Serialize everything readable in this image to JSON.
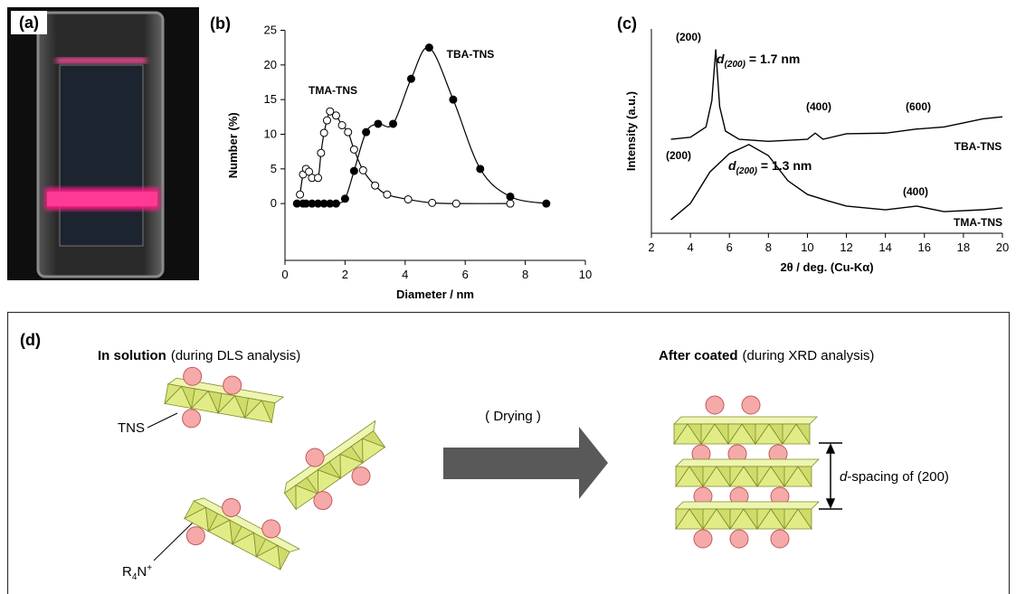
{
  "photo": {
    "label": "(a)"
  },
  "chart_data": [
    {
      "type": "line",
      "panel_label": "(b)",
      "xlabel": "Diameter / nm",
      "ylabel": "Number (%)",
      "xlim": [
        0,
        10
      ],
      "ylim": [
        -8.2,
        25
      ],
      "xticks": [
        0,
        2,
        4,
        6,
        8,
        10
      ],
      "yticks": [
        0,
        5,
        10,
        15,
        20,
        25
      ],
      "series": [
        {
          "name": "TMA-TNS",
          "marker": "open",
          "color": "#000000",
          "x": [
            0.5,
            0.6,
            0.7,
            0.8,
            0.9,
            1.1,
            1.2,
            1.3,
            1.4,
            1.5,
            1.7,
            1.9,
            2.1,
            2.3,
            2.6,
            3.0,
            3.4,
            4.1,
            4.9,
            5.7,
            7.5
          ],
          "values": [
            1.3,
            4.2,
            5.0,
            4.6,
            3.7,
            3.7,
            7.3,
            10.2,
            12.0,
            13.3,
            12.7,
            11.3,
            10.3,
            7.8,
            4.8,
            2.6,
            1.3,
            0.6,
            0.1,
            0,
            0
          ]
        },
        {
          "name": "TBA-TNS",
          "marker": "filled",
          "color": "#000000",
          "x": [
            0.4,
            0.6,
            0.7,
            0.9,
            1.1,
            1.3,
            1.5,
            1.7,
            2.0,
            2.3,
            2.7,
            3.1,
            3.6,
            4.2,
            4.8,
            5.6,
            6.5,
            7.5,
            8.7
          ],
          "values": [
            0,
            0,
            0,
            0,
            0,
            0,
            0,
            0,
            0.7,
            4.7,
            10.3,
            11.5,
            11.5,
            18,
            22.5,
            15,
            5,
            1,
            0
          ]
        }
      ]
    },
    {
      "type": "line",
      "panel_label": "(c)",
      "xlabel": "2θ / deg. (Cu-Kα)",
      "ylabel": "Intensity (a.u.)",
      "xlim": [
        2,
        20
      ],
      "ylim": [
        0,
        100
      ],
      "xticks": [
        2,
        4,
        6,
        8,
        10,
        12,
        14,
        16,
        18,
        20
      ],
      "series": [
        {
          "name": "TBA-TNS",
          "marker": "none",
          "color": "#000000",
          "x": [
            3,
            4,
            4.8,
            5.1,
            5.3,
            5.5,
            5.8,
            6.5,
            8,
            10,
            10.4,
            10.8,
            12,
            14,
            15.6,
            17,
            18,
            19,
            20
          ],
          "values": [
            46,
            47,
            52,
            65,
            90,
            62,
            50,
            46,
            45,
            46,
            49,
            46,
            48.7,
            49,
            51,
            52,
            54,
            56,
            57
          ]
        },
        {
          "name": "TMA-TNS",
          "marker": "none",
          "color": "#000000",
          "x": [
            3,
            4,
            5,
            6,
            7,
            8,
            9,
            10,
            11,
            12,
            14,
            15.6,
            17,
            19,
            20
          ],
          "values": [
            6.6,
            14.6,
            30,
            39,
            43.4,
            38,
            25.7,
            19,
            16,
            13.3,
            11.5,
            13.3,
            10.6,
            11.5,
            12.4
          ]
        }
      ],
      "annotations": [
        {
          "text": "(200)"
        },
        {
          "d": "d",
          "subscript": "(200)",
          "text": "= 1.7 nm"
        },
        {
          "text": "(400)"
        },
        {
          "text": "(600)"
        },
        {
          "text": "(200)"
        },
        {
          "d": "d",
          "subscript": "(200)",
          "text": "= 1.3 nm"
        },
        {
          "text": "(400)"
        }
      ]
    }
  ],
  "diagram": {
    "label": "(d)",
    "left_title": {
      "bold": "In solution",
      "rest": "(during DLS analysis)"
    },
    "right_title": {
      "bold": "After coated",
      "rest": "(during XRD analysis)"
    },
    "tns_label": "TNS",
    "cation_label": {
      "r": "R",
      "sub": "4",
      "n": "N",
      "sup": "+"
    },
    "arrow_label": "( Drying )",
    "spacing_label": {
      "italic": "d",
      "rest": "-spacing of (200)"
    }
  }
}
